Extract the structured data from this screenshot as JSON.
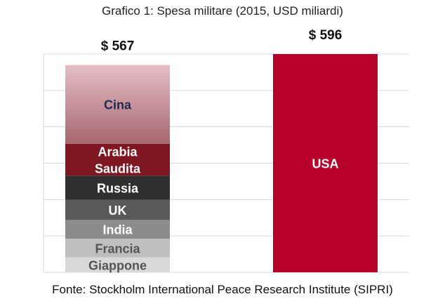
{
  "chart_data": {
    "type": "bar",
    "stacked": true,
    "title": "Grafico 1: Spesa militare (2015, USD miliardi)",
    "source": "Fonte: Stockholm International Peace Research Institute (SIPRI)",
    "ylim": [
      0,
      596
    ],
    "grid": true,
    "bars": [
      {
        "total_label": "$ 567",
        "segments": [
          {
            "name": "Giappone",
            "value": 41,
            "color": "#d9d9d9",
            "text_color": "#555555"
          },
          {
            "name": "Francia",
            "value": 51,
            "color": "#bfbfbf",
            "text_color": "#555555"
          },
          {
            "name": "India",
            "value": 51,
            "color": "#8c8c8c",
            "text_color": "#ffffff"
          },
          {
            "name": "UK",
            "value": 55,
            "color": "#595959",
            "text_color": "#ffffff"
          },
          {
            "name": "Russia",
            "value": 66,
            "color": "#2f2f2f",
            "text_color": "#ffffff"
          },
          {
            "name": "Arabia\nSaudita",
            "value": 87,
            "color": "#7f1722",
            "text_color": "#ffffff"
          },
          {
            "name": "Cina",
            "value": 215,
            "color": "gradient",
            "text_color": "#1f2a52"
          }
        ]
      },
      {
        "total_label": "$ 596",
        "segments": [
          {
            "name": "USA",
            "value": 596,
            "color": "#b5002a",
            "text_color": "#ffffff"
          }
        ]
      }
    ],
    "gradient_colors": [
      "#e6bec5",
      "#a7676f"
    ]
  }
}
